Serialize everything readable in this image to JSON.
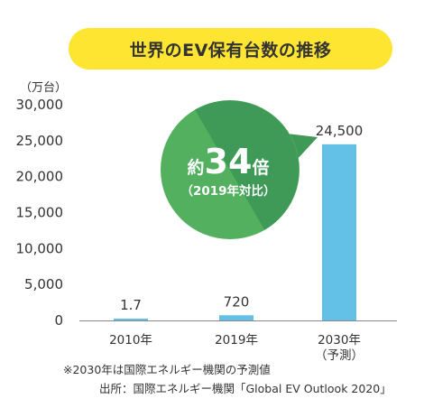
{
  "title": "世界のEV保有台数の推移",
  "unit_label": "（万台）",
  "colors": {
    "title_bg": "#fde531",
    "bar": "#63c0e6",
    "bubble_light": "#52b05f",
    "bubble_dark": "#3f9a58"
  },
  "callout": {
    "prefix": "約",
    "number": "34",
    "suffix": "倍",
    "sub": "（2019年対比）"
  },
  "notes": {
    "forecast": "※2030年は国際エネルギー機関の予測値",
    "source": "出所：国際エネルギー機関「Global EV Outlook 2020」"
  },
  "chart_data": {
    "type": "bar",
    "title": "世界のEV保有台数の推移",
    "ylabel": "（万台）",
    "xlabel": "",
    "ylim": [
      0,
      30000
    ],
    "yticks": [
      0,
      5000,
      10000,
      15000,
      20000,
      25000,
      30000
    ],
    "ytick_labels": [
      "0",
      "5,000",
      "10,000",
      "15,000",
      "20,000",
      "25,000",
      "30,000"
    ],
    "grid": false,
    "categories": [
      "2010年",
      "2019年",
      "2030年"
    ],
    "category_sublabels": [
      "",
      "",
      "（予測）"
    ],
    "values": [
      1.7,
      720,
      24500
    ],
    "value_labels": [
      "1.7",
      "720",
      "24,500"
    ]
  }
}
